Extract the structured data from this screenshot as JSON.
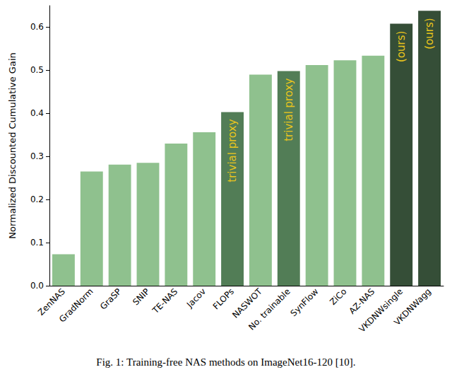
{
  "chart_data": {
    "type": "bar",
    "ylabel": "Normalized Discounted Cumulative Gain",
    "caption": "Fig. 1: Training-free NAS methods on ImageNet16-120 [10].",
    "categories": [
      "ZenNAS",
      "GradNorm",
      "GraSP",
      "SNIP",
      "TE-NAS",
      "Jacov",
      "FLOPs",
      "NASWOT",
      "No. trainable",
      "SynFlow",
      "ZiCo",
      "AZ-NAS",
      "VKDNWsingle",
      "VKDNWagg"
    ],
    "values": [
      0.073,
      0.265,
      0.281,
      0.285,
      0.33,
      0.356,
      0.403,
      0.49,
      0.498,
      0.512,
      0.523,
      0.534,
      0.608,
      0.638
    ],
    "colors": [
      "#8fc18e",
      "#8fc18e",
      "#8fc18e",
      "#8fc18e",
      "#8fc18e",
      "#8fc18e",
      "#527d56",
      "#8fc18e",
      "#527d56",
      "#8fc18e",
      "#8fc18e",
      "#8fc18e",
      "#354e37",
      "#354e37"
    ],
    "annotations": [
      {
        "category": "FLOPs",
        "text": "trivial proxy"
      },
      {
        "category": "No. trainable",
        "text": "trivial proxy"
      },
      {
        "category": "VKDNWsingle",
        "text": "(ours)"
      },
      {
        "category": "VKDNWagg",
        "text": "(ours)"
      }
    ],
    "ylim": [
      0,
      0.65
    ],
    "yticks": [
      {
        "value": 0,
        "label": "0.0"
      },
      0.1,
      0.2,
      0.3,
      0.4,
      0.5,
      0.6
    ],
    "grid": false
  }
}
